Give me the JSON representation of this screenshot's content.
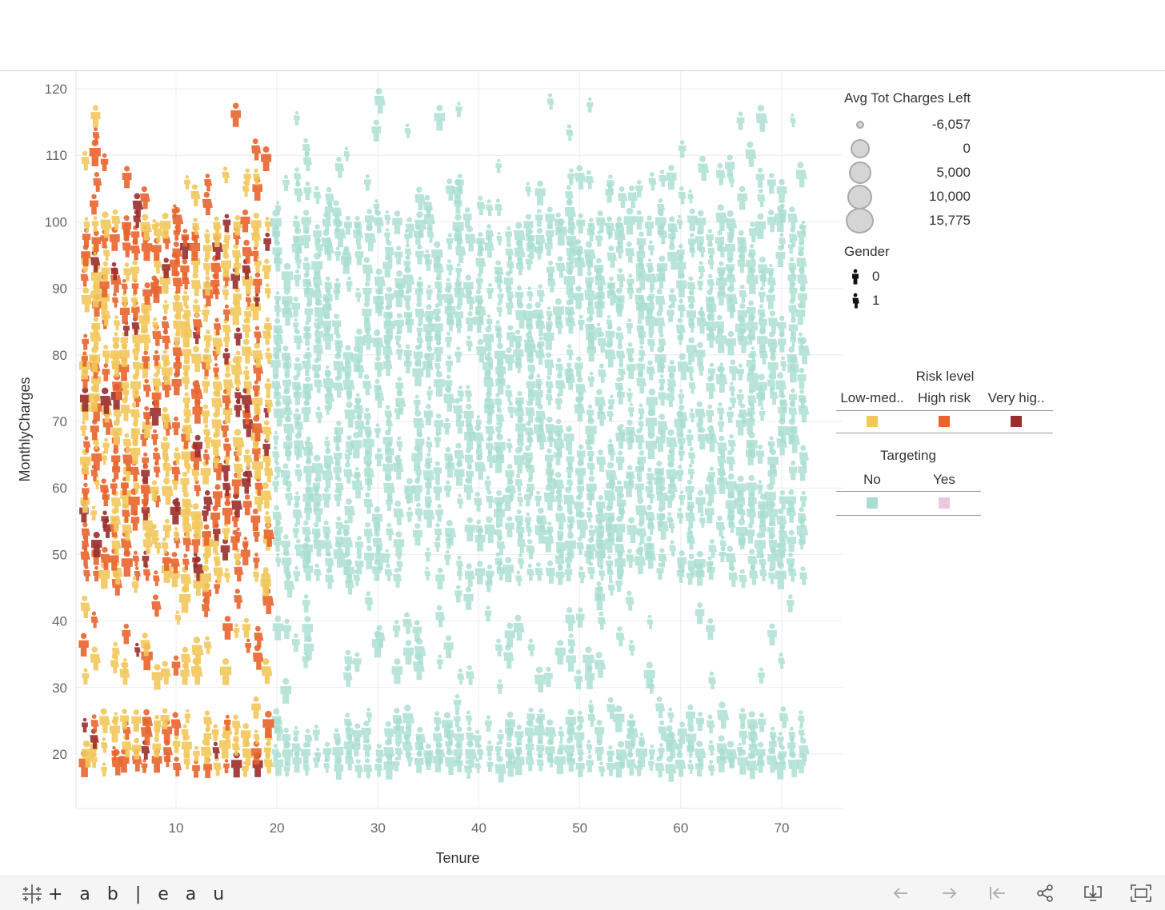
{
  "chart_data": {
    "type": "scatter",
    "mark_shape": "person-pictogram",
    "xlabel": "Tenure",
    "ylabel": "MonthlyCharges",
    "xlim": [
      0,
      72
    ],
    "ylim": [
      11,
      122
    ],
    "x_ticks": [
      10,
      20,
      30,
      40,
      50,
      60,
      70
    ],
    "y_ticks": [
      20,
      30,
      40,
      50,
      60,
      70,
      80,
      90,
      100,
      110,
      120
    ],
    "grid": true,
    "color_rule": "Tenure < 20 colored by Risk level; Tenure >= 20 colored by Targeting = No",
    "legends": {
      "size": {
        "title": "Avg Tot Charges Left",
        "entries": [
          "-6,057",
          "0",
          "5,000",
          "10,000",
          "15,775"
        ]
      },
      "gender": {
        "title": "Gender",
        "entries": [
          "0",
          "1"
        ]
      },
      "risk": {
        "title": "Risk level",
        "entries": [
          {
            "label": "Low-med..",
            "color": "#f2c85b"
          },
          {
            "label": "High risk",
            "color": "#e8642c"
          },
          {
            "label": "Very hig..",
            "color": "#9a2d2d"
          }
        ]
      },
      "targeting": {
        "title": "Targeting",
        "entries": [
          {
            "label": "No",
            "color": "#a8ddcf"
          },
          {
            "label": "Yes",
            "color": "#ebc7e3"
          }
        ]
      }
    }
  },
  "toolbar": {
    "logo_text": "+ a b | e a u"
  }
}
